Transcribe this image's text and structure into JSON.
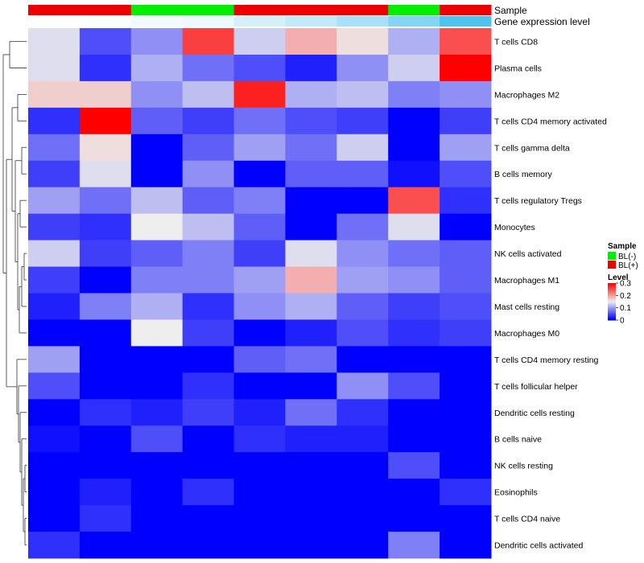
{
  "chart_data": {
    "type": "heatmap",
    "title": "",
    "columns": 9,
    "annotations": [
      {
        "name": "Sample",
        "values": [
          "BL(+)",
          "BL(+)",
          "BL(-)",
          "BL(-)",
          "BL(+)",
          "BL(+)",
          "BL(+)",
          "BL(-)",
          "BL(+)"
        ],
        "colors": {
          "BL(-)": "#00ee00",
          "BL(+)": "#ee0000"
        }
      },
      {
        "name": "Gene expression level",
        "values": [
          0.0,
          0.02,
          0.08,
          0.1,
          0.25,
          0.35,
          0.5,
          0.7,
          1.0
        ],
        "color_low": "#ffffff",
        "color_high": "#4fc3ee"
      }
    ],
    "rows": [
      "T cells CD8",
      "Plasma cells",
      "Macrophages M2",
      "T cells CD4 memory activated",
      "T cells gamma delta",
      "B cells memory",
      "T cells regulatory  Tregs",
      "Monocytes",
      "NK cells activated",
      "Macrophages M1",
      "Mast cells resting",
      "Macrophages M0",
      "T cells CD4 memory resting",
      "T cells follicular helper",
      "Dendritic cells resting",
      "B cells naive",
      "NK cells resting",
      "Eosinophils",
      "T cells CD4 naive",
      "Dendritic cells activated"
    ],
    "values": [
      [
        0.14,
        0.05,
        0.09,
        0.26,
        0.13,
        0.19,
        0.16,
        0.11,
        0.25
      ],
      [
        0.14,
        0.03,
        0.11,
        0.07,
        0.05,
        0.02,
        0.09,
        0.13,
        0.3
      ],
      [
        0.17,
        0.17,
        0.09,
        0.12,
        0.28,
        0.11,
        0.12,
        0.08,
        0.09
      ],
      [
        0.03,
        0.3,
        0.06,
        0.04,
        0.07,
        0.05,
        0.04,
        0.0,
        0.04
      ],
      [
        0.07,
        0.16,
        0.0,
        0.06,
        0.1,
        0.07,
        0.13,
        0.0,
        0.1
      ],
      [
        0.04,
        0.14,
        0.0,
        0.09,
        0.0,
        0.06,
        0.06,
        0.01,
        0.05
      ],
      [
        0.1,
        0.07,
        0.12,
        0.06,
        0.08,
        0.0,
        0.0,
        0.25,
        0.03
      ],
      [
        0.04,
        0.03,
        0.15,
        0.12,
        0.06,
        0.0,
        0.07,
        0.14,
        0.0
      ],
      [
        0.13,
        0.04,
        0.06,
        0.08,
        0.04,
        0.14,
        0.09,
        0.07,
        0.06
      ],
      [
        0.04,
        0.0,
        0.08,
        0.08,
        0.1,
        0.19,
        0.1,
        0.09,
        0.06
      ],
      [
        0.02,
        0.08,
        0.11,
        0.03,
        0.09,
        0.11,
        0.06,
        0.04,
        0.05
      ],
      [
        0.0,
        0.0,
        0.15,
        0.04,
        0.0,
        0.02,
        0.05,
        0.03,
        0.04
      ],
      [
        0.1,
        0.0,
        0.0,
        0.0,
        0.06,
        0.07,
        0.0,
        0.0,
        0.0
      ],
      [
        0.05,
        0.0,
        0.0,
        0.03,
        0.0,
        0.0,
        0.09,
        0.05,
        0.0
      ],
      [
        0.0,
        0.03,
        0.02,
        0.04,
        0.02,
        0.07,
        0.03,
        0.0,
        0.0
      ],
      [
        0.01,
        0.0,
        0.05,
        0.0,
        0.03,
        0.02,
        0.02,
        0.0,
        0.0
      ],
      [
        0.0,
        0.0,
        0.0,
        0.0,
        0.0,
        0.0,
        0.0,
        0.05,
        0.0
      ],
      [
        0.0,
        0.02,
        0.0,
        0.03,
        0.0,
        0.0,
        0.0,
        0.0,
        0.03
      ],
      [
        0.0,
        0.03,
        0.0,
        0.0,
        0.0,
        0.0,
        0.0,
        0.0,
        0.0
      ],
      [
        0.03,
        0.0,
        0.0,
        0.0,
        0.0,
        0.0,
        0.0,
        0.08,
        0.0
      ]
    ],
    "color_scale": {
      "min": 0,
      "max": 0.3,
      "low": "#0000ff",
      "mid": "#eeeeee",
      "mid_value": 0.15,
      "high": "#ff0000"
    },
    "legends": {
      "sample": {
        "title": "Sample",
        "items": [
          {
            "label": "BL(-)",
            "color": "#00ee00"
          },
          {
            "label": "BL(+)",
            "color": "#ee0000"
          }
        ]
      },
      "level": {
        "title": "Level",
        "ticks": [
          "0.3",
          "0.2",
          "0.1",
          "0"
        ],
        "tick_values": [
          0.3,
          0.2,
          0.1,
          0
        ]
      }
    },
    "row_dendrogram": true,
    "grid": false
  }
}
